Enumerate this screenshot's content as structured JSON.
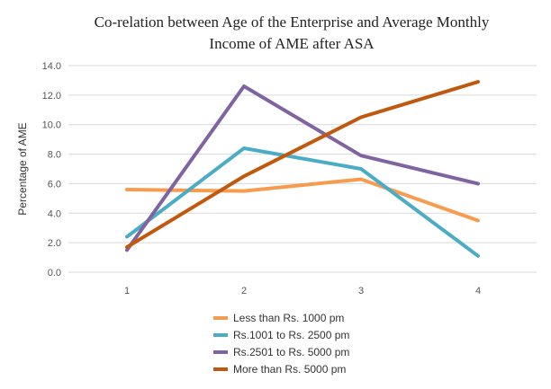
{
  "chart_data": {
    "type": "line",
    "title_lines": [
      "Co-relation between Age of the Enterprise and Average Monthly",
      "Income of AME after ASA"
    ],
    "xlabel": "",
    "ylabel": "Percentage of AME",
    "x": [
      "1",
      "2",
      "3",
      "4"
    ],
    "ylim": [
      0,
      14
    ],
    "yticks": [
      "0.0",
      "2.0",
      "4.0",
      "6.0",
      "8.0",
      "10.0",
      "12.0",
      "14.0"
    ],
    "grid": "horizontal",
    "legend_position": "bottom",
    "series": [
      {
        "name": "Less than Rs. 1000 pm",
        "color": "#F79B4F",
        "values": [
          5.6,
          5.5,
          6.3,
          3.5
        ]
      },
      {
        "name": "Rs.1001 to Rs. 2500 pm",
        "color": "#4BACC6",
        "values": [
          2.4,
          8.4,
          7.0,
          1.1
        ]
      },
      {
        "name": "Rs.2501 to Rs. 5000 pm",
        "color": "#8064A2",
        "values": [
          1.5,
          12.6,
          7.9,
          6.0
        ]
      },
      {
        "name": "More than Rs. 5000 pm",
        "color": "#C0590E",
        "values": [
          1.7,
          6.5,
          10.5,
          12.9
        ]
      }
    ]
  }
}
